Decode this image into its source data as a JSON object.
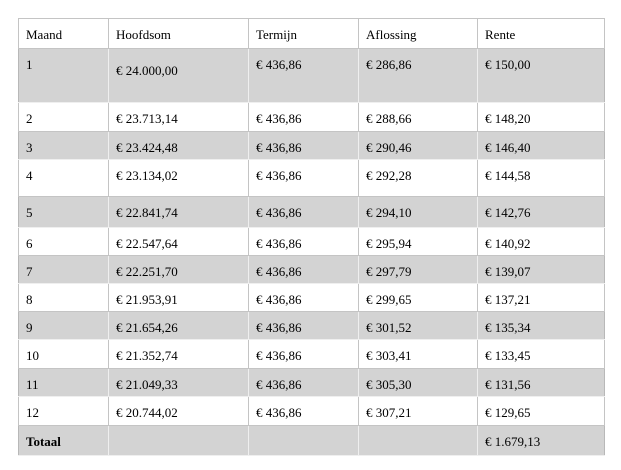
{
  "table": {
    "header": [
      "Maand",
      "Hoofdsom",
      "Termijn",
      "Aflossing",
      "Rente"
    ],
    "rows": [
      [
        "1",
        "€ 24.000,00",
        "€ 436,86",
        "€ 286,86",
        "€ 150,00"
      ],
      [
        "2",
        "€ 23.713,14",
        "€ 436,86",
        "€ 288,66",
        "€ 148,20"
      ],
      [
        "3",
        "€ 23.424,48",
        "€ 436,86",
        "€ 290,46",
        "€ 146,40"
      ],
      [
        "4",
        "€ 23.134,02",
        "€ 436,86",
        "€ 292,28",
        "€ 144,58"
      ],
      [
        "5",
        "€ 22.841,74",
        "€ 436,86",
        "€ 294,10",
        "€ 142,76"
      ],
      [
        "6",
        "€ 22.547,64",
        "€ 436,86",
        "€ 295,94",
        "€ 140,92"
      ],
      [
        "7",
        "€ 22.251,70",
        "€ 436,86",
        "€ 297,79",
        "€ 139,07"
      ],
      [
        "8",
        "€ 21.953,91",
        "€ 436,86",
        "€ 299,65",
        "€ 137,21"
      ],
      [
        "9",
        "€ 21.654,26",
        "€ 436,86",
        "€ 301,52",
        "€ 135,34"
      ],
      [
        "10",
        "€ 21.352,74",
        "€ 436,86",
        "€ 303,41",
        "€ 133,45"
      ],
      [
        "11",
        "€ 21.049,33",
        "€ 436,86",
        "€ 305,30",
        "€ 131,56"
      ],
      [
        "12",
        "€ 20.744,02",
        "€ 436,86",
        "€ 307,21",
        "€ 129,65"
      ]
    ],
    "total": {
      "label": "Totaal",
      "rente": "€ 1.679,13"
    }
  }
}
